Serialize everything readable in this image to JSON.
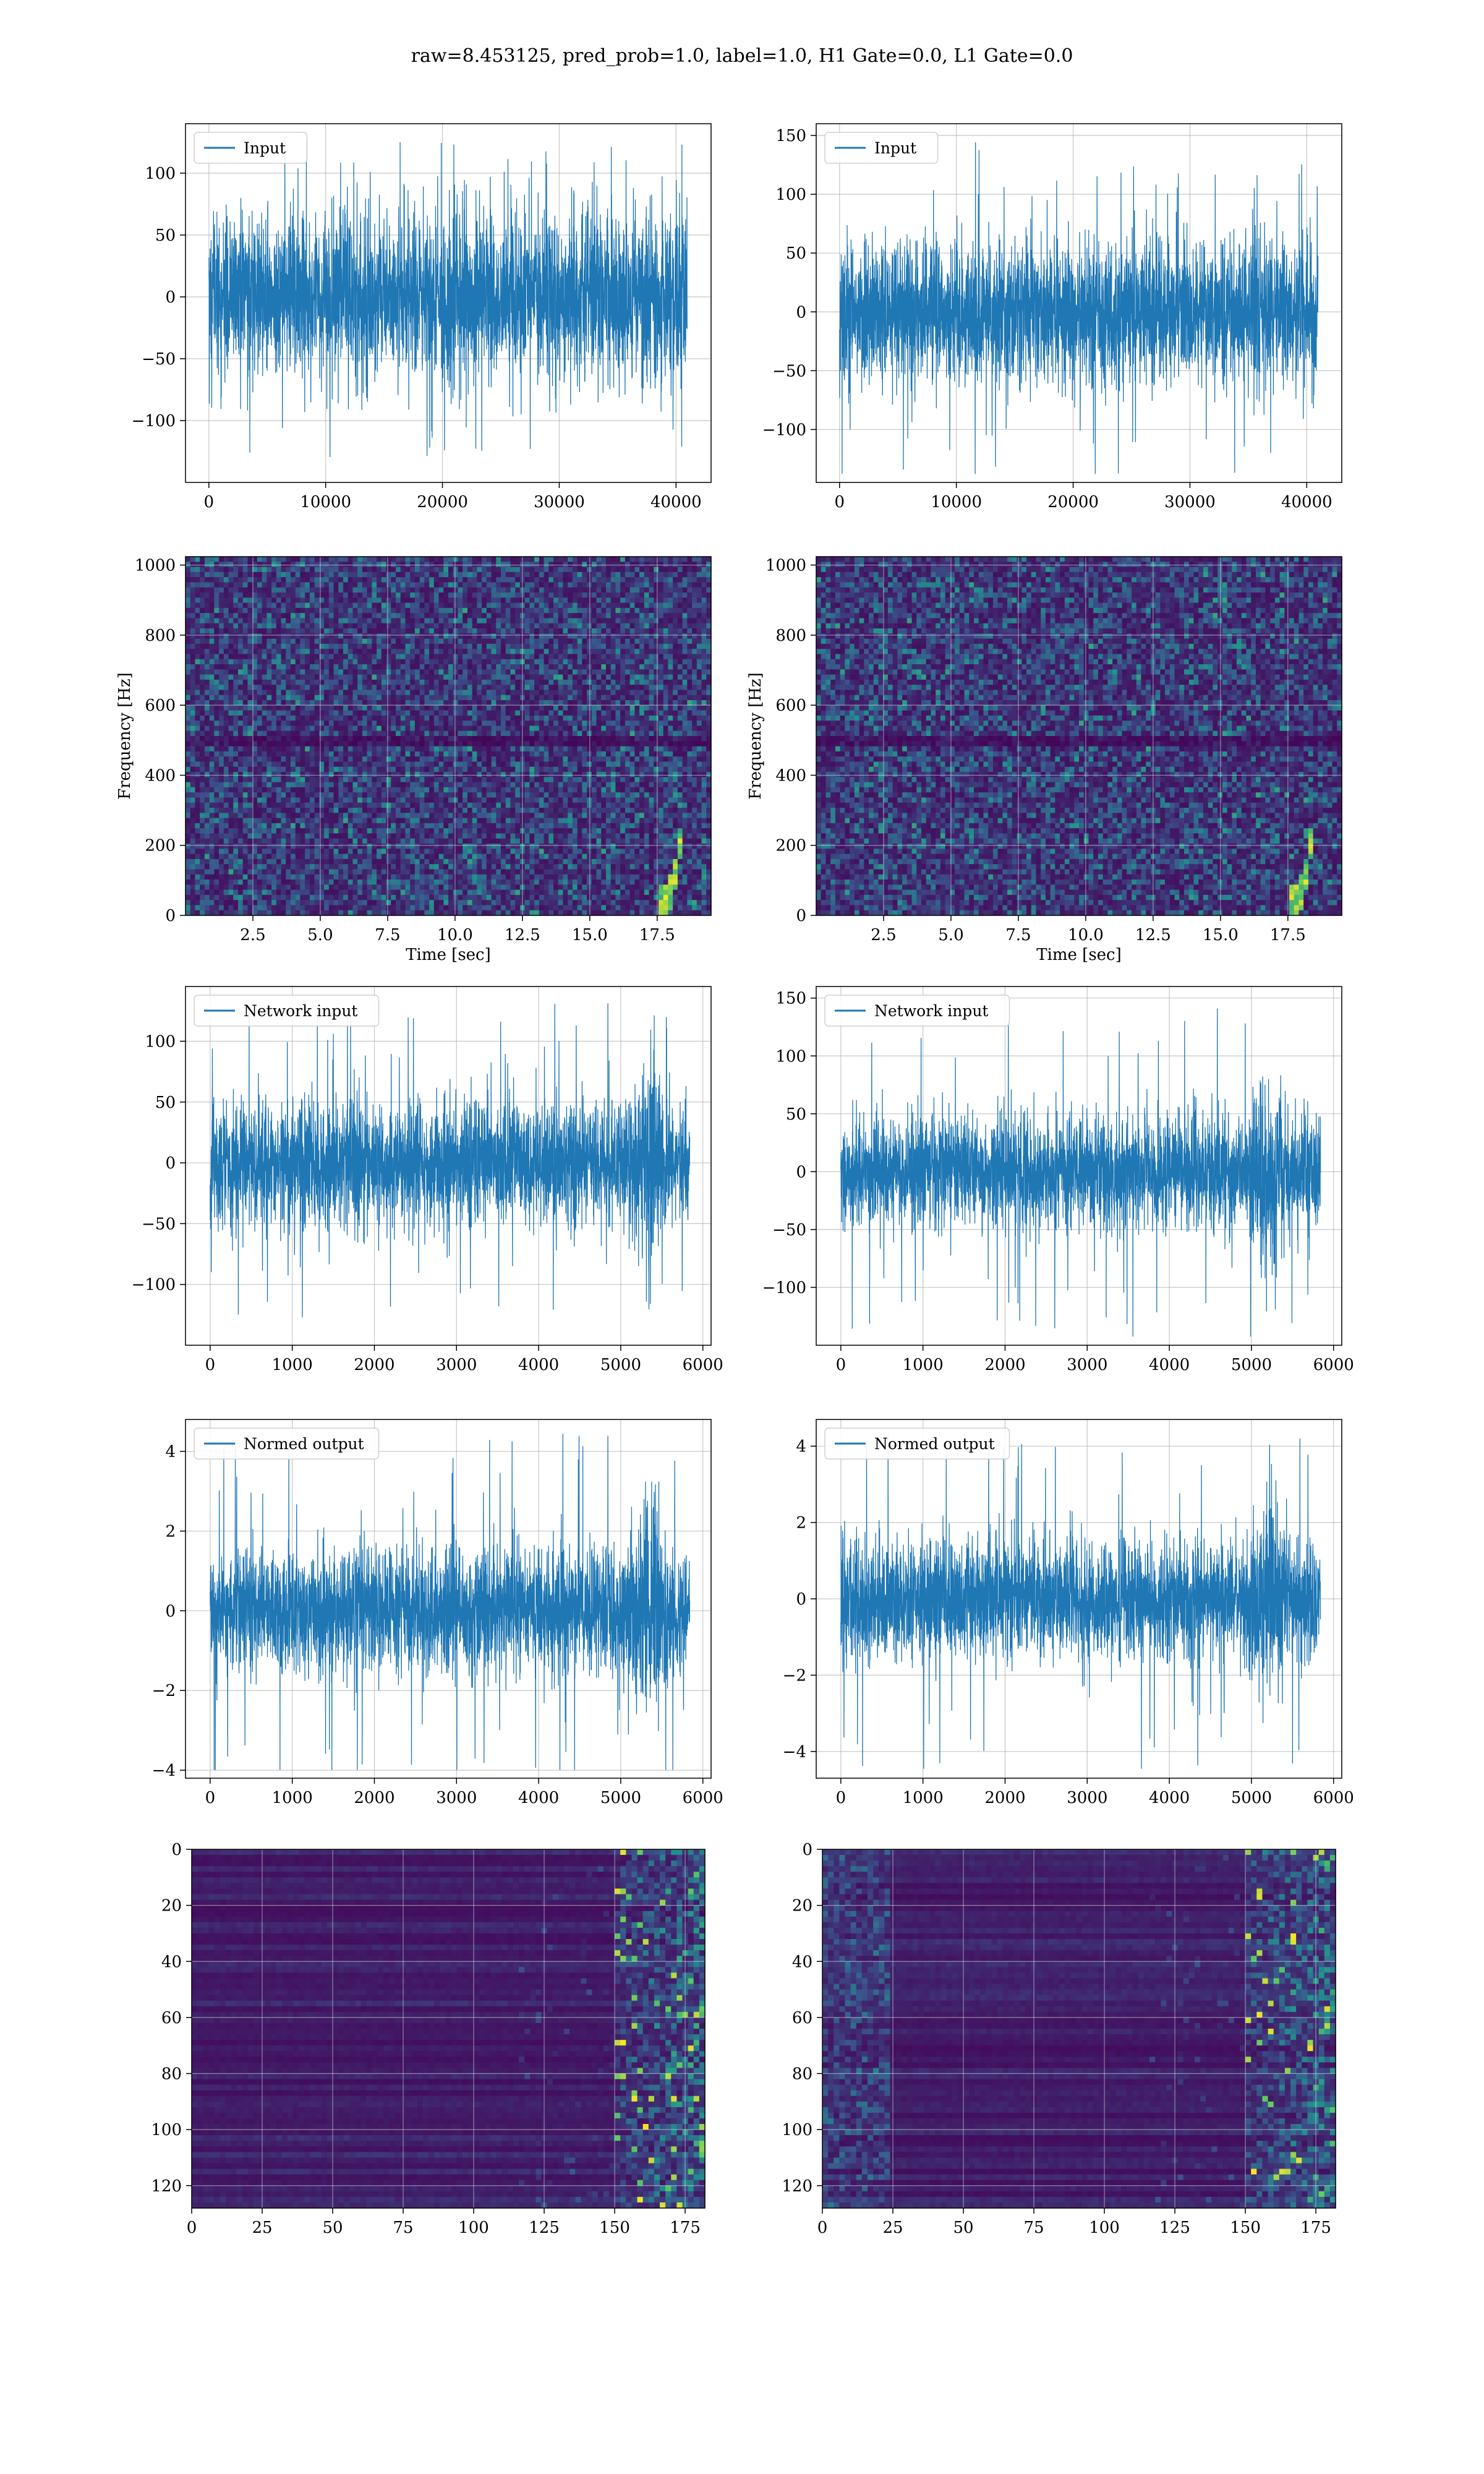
{
  "suptitle": "raw=8.453125, pred_prob=1.0, label=1.0, H1 Gate=0.0, L1 Gate=0.0",
  "colors": {
    "line": "#1f77b4",
    "grid": "#b0b0b0",
    "viridis_low": "#440154",
    "viridis_mid": "#21918c",
    "viridis_high": "#fde725"
  },
  "chart_data": [
    {
      "id": "h1-input",
      "type": "line",
      "legend": "Input",
      "xlim": [
        -2000,
        43000
      ],
      "ylim": [
        -150,
        140
      ],
      "xticks": [
        0,
        10000,
        20000,
        30000,
        40000
      ],
      "yticks": [
        -100,
        -50,
        0,
        50,
        100
      ],
      "x_range": [
        0,
        40960
      ],
      "amplitude": 60,
      "peak": 130,
      "burst": null
    },
    {
      "id": "l1-input",
      "type": "line",
      "legend": "Input",
      "xlim": [
        -2000,
        43000
      ],
      "ylim": [
        -145,
        160
      ],
      "xticks": [
        0,
        10000,
        20000,
        30000,
        40000
      ],
      "yticks": [
        -100,
        -50,
        0,
        50,
        100,
        150
      ],
      "x_range": [
        0,
        40960
      ],
      "amplitude": 55,
      "peak": 145,
      "burst": null
    },
    {
      "id": "h1-spectrogram",
      "type": "heatmap",
      "xlabel": "Time [sec]",
      "ylabel": "Frequency [Hz]",
      "xlim": [
        0,
        19.5
      ],
      "ylim": [
        0,
        1024
      ],
      "xticks": [
        "2.5",
        "5.0",
        "7.5",
        "10.0",
        "12.5",
        "15.0",
        "17.5"
      ],
      "yticks": [
        "0",
        "200",
        "400",
        "600",
        "800",
        "1000"
      ],
      "chirp_time": 18.2
    },
    {
      "id": "l1-spectrogram",
      "type": "heatmap",
      "xlabel": "Time [sec]",
      "ylabel": "Frequency [Hz]",
      "xlim": [
        0,
        19.5
      ],
      "ylim": [
        0,
        1024
      ],
      "xticks": [
        "2.5",
        "5.0",
        "7.5",
        "10.0",
        "12.5",
        "15.0",
        "17.5"
      ],
      "yticks": [
        "0",
        "200",
        "400",
        "600",
        "800",
        "1000"
      ],
      "chirp_time": 18.2
    },
    {
      "id": "h1-network-input",
      "type": "line",
      "legend": "Network input",
      "xlim": [
        -300,
        6100
      ],
      "ylim": [
        -150,
        145
      ],
      "xticks": [
        0,
        1000,
        2000,
        3000,
        4000,
        5000,
        6000
      ],
      "yticks": [
        -100,
        -50,
        0,
        50,
        100
      ],
      "x_range": [
        0,
        5840
      ],
      "amplitude": 45,
      "peak": 135,
      "burst": 5350
    },
    {
      "id": "l1-network-input",
      "type": "line",
      "legend": "Network input",
      "xlim": [
        -300,
        6100
      ],
      "ylim": [
        -150,
        160
      ],
      "xticks": [
        0,
        1000,
        2000,
        3000,
        4000,
        5000,
        6000
      ],
      "yticks": [
        -100,
        -50,
        0,
        50,
        100,
        150
      ],
      "x_range": [
        0,
        5840
      ],
      "amplitude": 45,
      "peak": 148,
      "burst": 5200
    },
    {
      "id": "h1-normed-output",
      "type": "line",
      "legend": "Normed output",
      "xlim": [
        -300,
        6100
      ],
      "ylim": [
        -4.2,
        4.8
      ],
      "xticks": [
        0,
        1000,
        2000,
        3000,
        4000,
        5000,
        6000
      ],
      "yticks": [
        -4,
        -2,
        0,
        2,
        4
      ],
      "x_range": [
        0,
        5840
      ],
      "amplitude": 1.4,
      "peak": 4.5,
      "burst": 5350
    },
    {
      "id": "l1-normed-output",
      "type": "line",
      "legend": "Normed output",
      "xlim": [
        -300,
        6100
      ],
      "ylim": [
        -4.7,
        4.7
      ],
      "xticks": [
        0,
        1000,
        2000,
        3000,
        4000,
        5000,
        6000
      ],
      "yticks": [
        -4,
        -2,
        0,
        2,
        4
      ],
      "x_range": [
        0,
        5840
      ],
      "amplitude": 1.4,
      "peak": 4.5,
      "burst": 5200
    },
    {
      "id": "h1-feature-map",
      "type": "heatmap",
      "xlim": [
        0,
        182
      ],
      "ylim": [
        128,
        0
      ],
      "xticks": [
        "0",
        "25",
        "50",
        "75",
        "100",
        "125",
        "150",
        "175"
      ],
      "yticks": [
        "0",
        "20",
        "40",
        "60",
        "80",
        "100",
        "120"
      ],
      "active_from": 150
    },
    {
      "id": "l1-feature-map",
      "type": "heatmap",
      "xlim": [
        0,
        182
      ],
      "ylim": [
        128,
        0
      ],
      "xticks": [
        "0",
        "25",
        "50",
        "75",
        "100",
        "125",
        "150",
        "175"
      ],
      "yticks": [
        "0",
        "20",
        "40",
        "60",
        "80",
        "100",
        "120"
      ],
      "active_from": 150
    }
  ]
}
